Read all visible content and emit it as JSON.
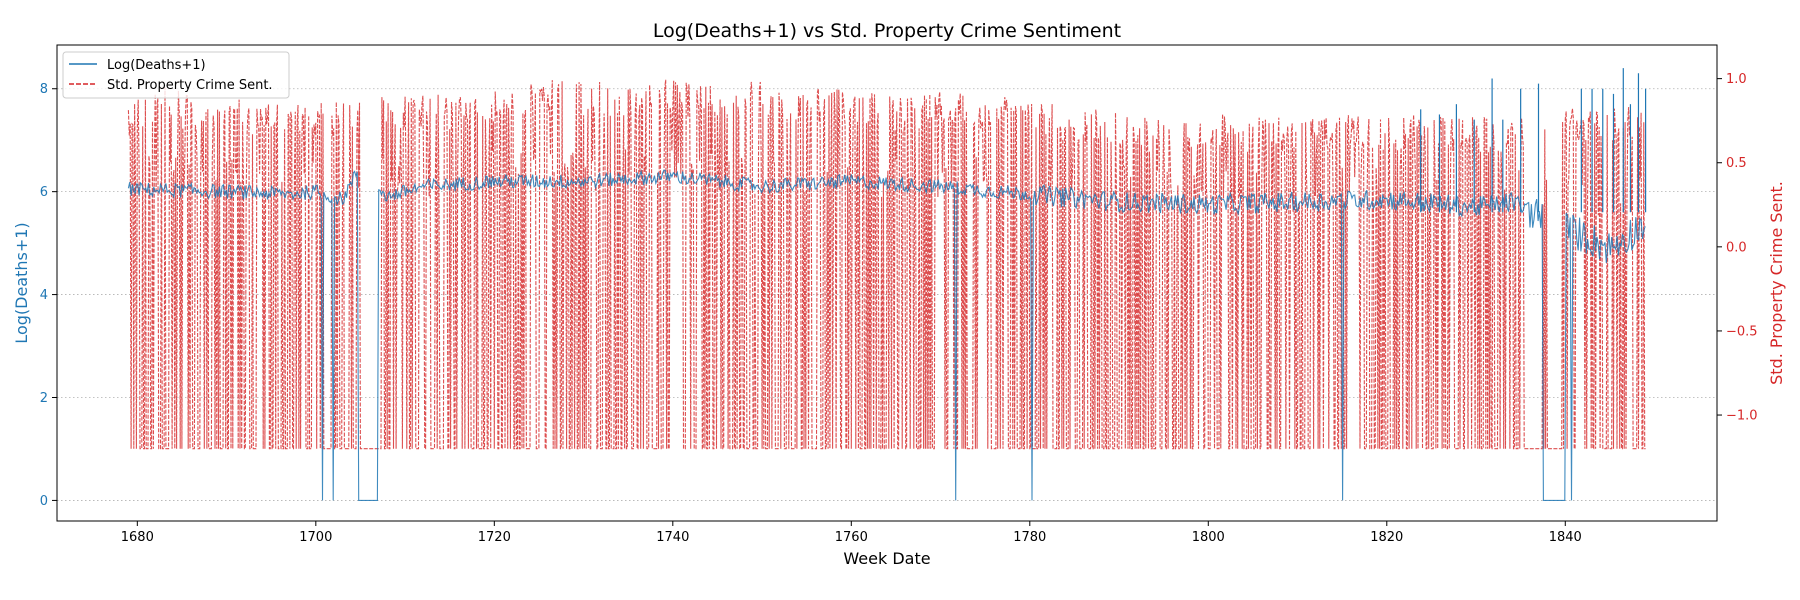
{
  "chart_data": {
    "type": "line",
    "title": "Log(Deaths+1) vs Std. Property Crime Sentiment",
    "xlabel": "Week Date",
    "ylabel_left": "Log(Deaths+1)",
    "ylabel_right": "Std. Property Crime Sent.",
    "xlim": [
      1671,
      1857
    ],
    "ylim_left": [
      -0.4,
      8.85
    ],
    "ylim_right": [
      -1.63,
      1.2
    ],
    "x_ticks": [
      1680,
      1700,
      1720,
      1740,
      1760,
      1780,
      1800,
      1820,
      1840
    ],
    "y_left_ticks": [
      0,
      2,
      4,
      6,
      8
    ],
    "y_right_ticks": [
      -1.0,
      -0.5,
      0.0,
      0.5,
      1.0
    ],
    "y_right_tick_labels": [
      "−1.0",
      "−0.5",
      "0.0",
      "0.5",
      "1.0"
    ],
    "grid": "horizontal dotted",
    "legend_position": "top-left",
    "colors": {
      "left": "#1f77b4",
      "right": "#d62728"
    },
    "series": [
      {
        "name": "Log(Deaths+1)",
        "axis": "left",
        "style": "solid",
        "x_range": [
          1679,
          1849
        ],
        "base_profile": [
          [
            1679,
            6.05
          ],
          [
            1690,
            6.0
          ],
          [
            1697,
            5.95
          ],
          [
            1700,
            6.0
          ],
          [
            1703,
            5.85
          ],
          [
            1705,
            6.5
          ],
          [
            1708,
            5.9
          ],
          [
            1712,
            6.1
          ],
          [
            1720,
            6.2
          ],
          [
            1730,
            6.2
          ],
          [
            1740,
            6.3
          ],
          [
            1750,
            6.1
          ],
          [
            1760,
            6.2
          ],
          [
            1770,
            6.1
          ],
          [
            1780,
            5.95
          ],
          [
            1790,
            5.8
          ],
          [
            1800,
            5.75
          ],
          [
            1810,
            5.8
          ],
          [
            1820,
            5.85
          ],
          [
            1830,
            5.7
          ],
          [
            1834,
            5.8
          ],
          [
            1840,
            5.3
          ],
          [
            1845,
            4.9
          ],
          [
            1849,
            5.4
          ]
        ],
        "zero_spans": [
          [
            1704.8,
            1707.0
          ],
          [
            1837.5,
            1840.0
          ]
        ],
        "spike_peaks": [
          [
            1823.8,
            7.6
          ],
          [
            1825.9,
            7.5
          ],
          [
            1827.8,
            7.7
          ],
          [
            1829.8,
            7.4
          ],
          [
            1831.8,
            8.2
          ],
          [
            1833.0,
            7.4
          ],
          [
            1835.0,
            8.0
          ],
          [
            1837.0,
            8.1
          ],
          [
            1841.8,
            8.0
          ],
          [
            1843.0,
            8.0
          ],
          [
            1844.2,
            8.0
          ],
          [
            1845.4,
            7.9
          ],
          [
            1846.5,
            8.4
          ],
          [
            1847.3,
            7.7
          ],
          [
            1848.2,
            8.3
          ],
          [
            1849.0,
            8.0
          ]
        ]
      },
      {
        "name": "Std. Property Crime Sent.",
        "axis": "right",
        "style": "dashed",
        "x_range": [
          1679,
          1849
        ],
        "floor": -1.2,
        "envelope": [
          [
            1679,
            0.88
          ],
          [
            1683,
            0.95
          ],
          [
            1687,
            0.9
          ],
          [
            1692,
            0.88
          ],
          [
            1697,
            0.9
          ],
          [
            1701,
            0.88
          ],
          [
            1705,
            0.86
          ],
          [
            1708,
            0.92
          ],
          [
            1712,
            0.92
          ],
          [
            1715,
            0.9
          ],
          [
            1720,
            0.95
          ],
          [
            1725,
            1.0
          ],
          [
            1730,
            0.98
          ],
          [
            1735,
            0.98
          ],
          [
            1740,
            1.0
          ],
          [
            1745,
            0.95
          ],
          [
            1750,
            1.0
          ],
          [
            1755,
            0.95
          ],
          [
            1760,
            0.93
          ],
          [
            1765,
            0.9
          ],
          [
            1770,
            0.93
          ],
          [
            1775,
            0.9
          ],
          [
            1780,
            0.88
          ],
          [
            1785,
            0.85
          ],
          [
            1790,
            0.8
          ],
          [
            1795,
            0.76
          ],
          [
            1800,
            0.8
          ],
          [
            1805,
            0.78
          ],
          [
            1810,
            0.76
          ],
          [
            1815,
            0.78
          ],
          [
            1820,
            0.8
          ],
          [
            1825,
            0.78
          ],
          [
            1830,
            0.78
          ],
          [
            1835,
            0.78
          ],
          [
            1840,
            0.82
          ],
          [
            1845,
            0.84
          ],
          [
            1849,
            0.86
          ]
        ],
        "low_values": [
          [
            1679,
            0.43
          ],
          [
            1690,
            0.4
          ],
          [
            1700,
            0.38
          ],
          [
            1705,
            0.42
          ],
          [
            1710,
            0.4
          ],
          [
            1720,
            0.45
          ],
          [
            1730,
            0.45
          ],
          [
            1740,
            0.47
          ],
          [
            1750,
            0.42
          ],
          [
            1760,
            0.42
          ],
          [
            1770,
            0.42
          ],
          [
            1780,
            0.4
          ],
          [
            1790,
            0.37
          ],
          [
            1800,
            0.33
          ],
          [
            1810,
            0.33
          ],
          [
            1820,
            0.36
          ],
          [
            1830,
            0.36
          ],
          [
            1840,
            0.3
          ],
          [
            1845,
            0.22
          ],
          [
            1849,
            0.3
          ]
        ],
        "gaps": [
          [
            1700.8,
            1701.5
          ],
          [
            1705.3,
            1707.0
          ],
          [
            1835.4,
            1837.4
          ],
          [
            1837.9,
            1839.6
          ]
        ]
      }
    ]
  }
}
